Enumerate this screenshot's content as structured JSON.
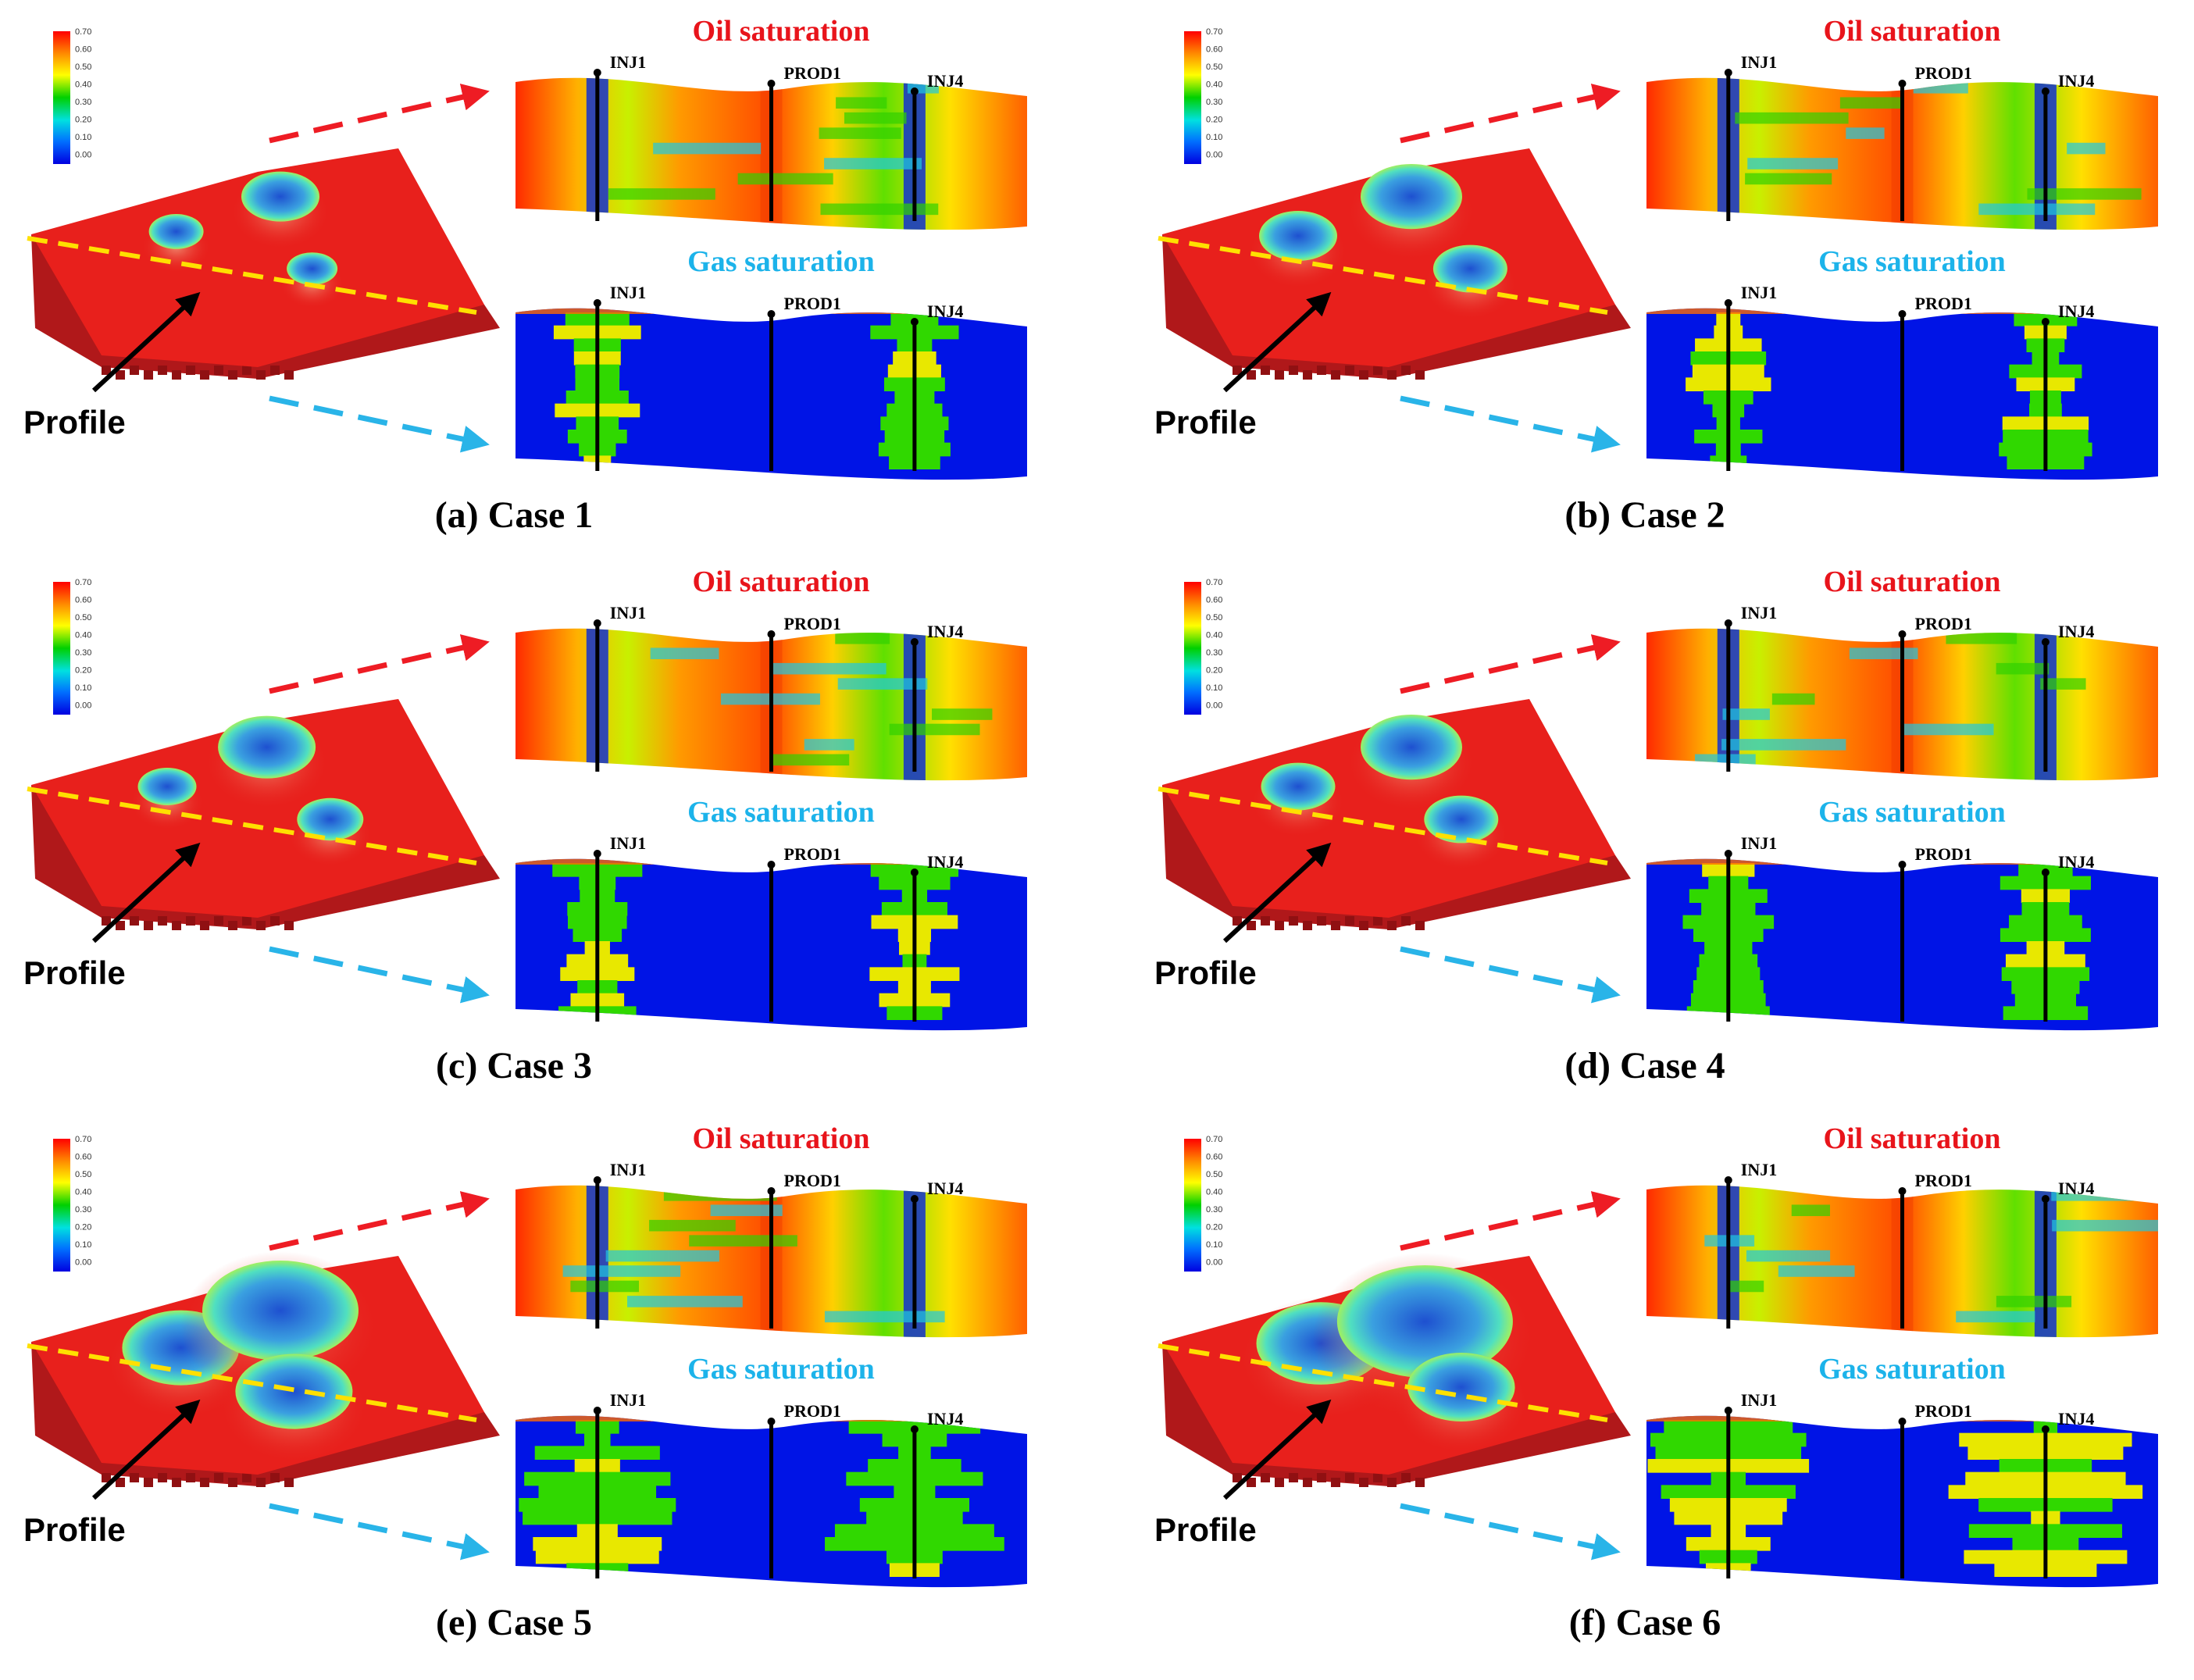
{
  "labels": {
    "oil": "Oil saturation",
    "gas": "Gas saturation",
    "profile": "Profile",
    "wells": [
      "INJ1",
      "PROD1",
      "INJ4"
    ]
  },
  "colorbar": {
    "ticks": [
      "0.70",
      "0.60",
      "0.50",
      "0.40",
      "0.30",
      "0.20",
      "0.10",
      "0.00"
    ],
    "colors": [
      "#ff0000",
      "#ff8c00",
      "#ffff00",
      "#00d000",
      "#00e0e0",
      "#0070ff",
      "#0000e0"
    ]
  },
  "colors": {
    "oil_title": "#e8141b",
    "gas_title": "#1cb3ea",
    "red_arrow": "#ee1c24",
    "blue_arrow": "#29b4e8",
    "profile_line": "#ffe000",
    "reservoir": "#e8201c"
  },
  "panels": [
    {
      "caption": "(a) Case 1"
    },
    {
      "caption": "(b) Case 2"
    },
    {
      "caption": "(c) Case 3"
    },
    {
      "caption": "(d) Case 4"
    },
    {
      "caption": "(e) Case 5"
    },
    {
      "caption": "(f) Case 6"
    }
  ]
}
